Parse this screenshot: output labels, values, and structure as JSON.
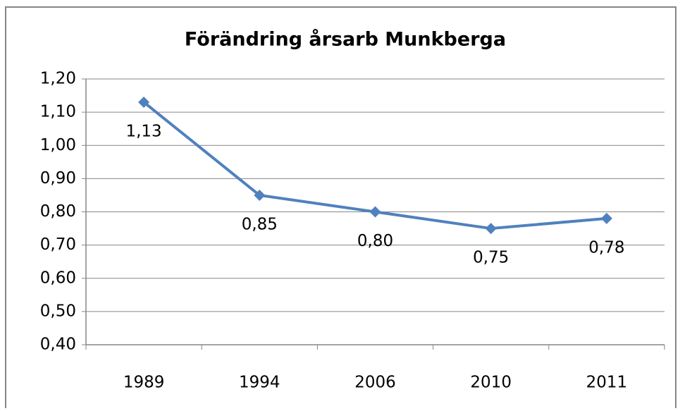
{
  "chart_data": {
    "type": "line",
    "title": "Förändring årsarb Munkberga",
    "categories": [
      "1989",
      "1994",
      "2006",
      "2010",
      "2011"
    ],
    "series": [
      {
        "name": "Förändring årsarb Munkberga",
        "color": "#4f81bd",
        "values": [
          1.13,
          0.85,
          0.8,
          0.75,
          0.78
        ],
        "value_labels": [
          "1,13",
          "0,85",
          "0,80",
          "0,75",
          "0,78"
        ]
      }
    ],
    "ylim": [
      0.4,
      1.2
    ],
    "yticks": [
      {
        "value": 0.4,
        "label": "0,40"
      },
      {
        "value": 0.5,
        "label": "0,50"
      },
      {
        "value": 0.6,
        "label": "0,60"
      },
      {
        "value": 0.7,
        "label": "0,70"
      },
      {
        "value": 0.8,
        "label": "0,80"
      },
      {
        "value": 0.9,
        "label": "0,90"
      },
      {
        "value": 1.0,
        "label": "1,00"
      },
      {
        "value": 1.1,
        "label": "1,10"
      },
      {
        "value": 1.2,
        "label": "1,20"
      }
    ],
    "grid": true
  }
}
